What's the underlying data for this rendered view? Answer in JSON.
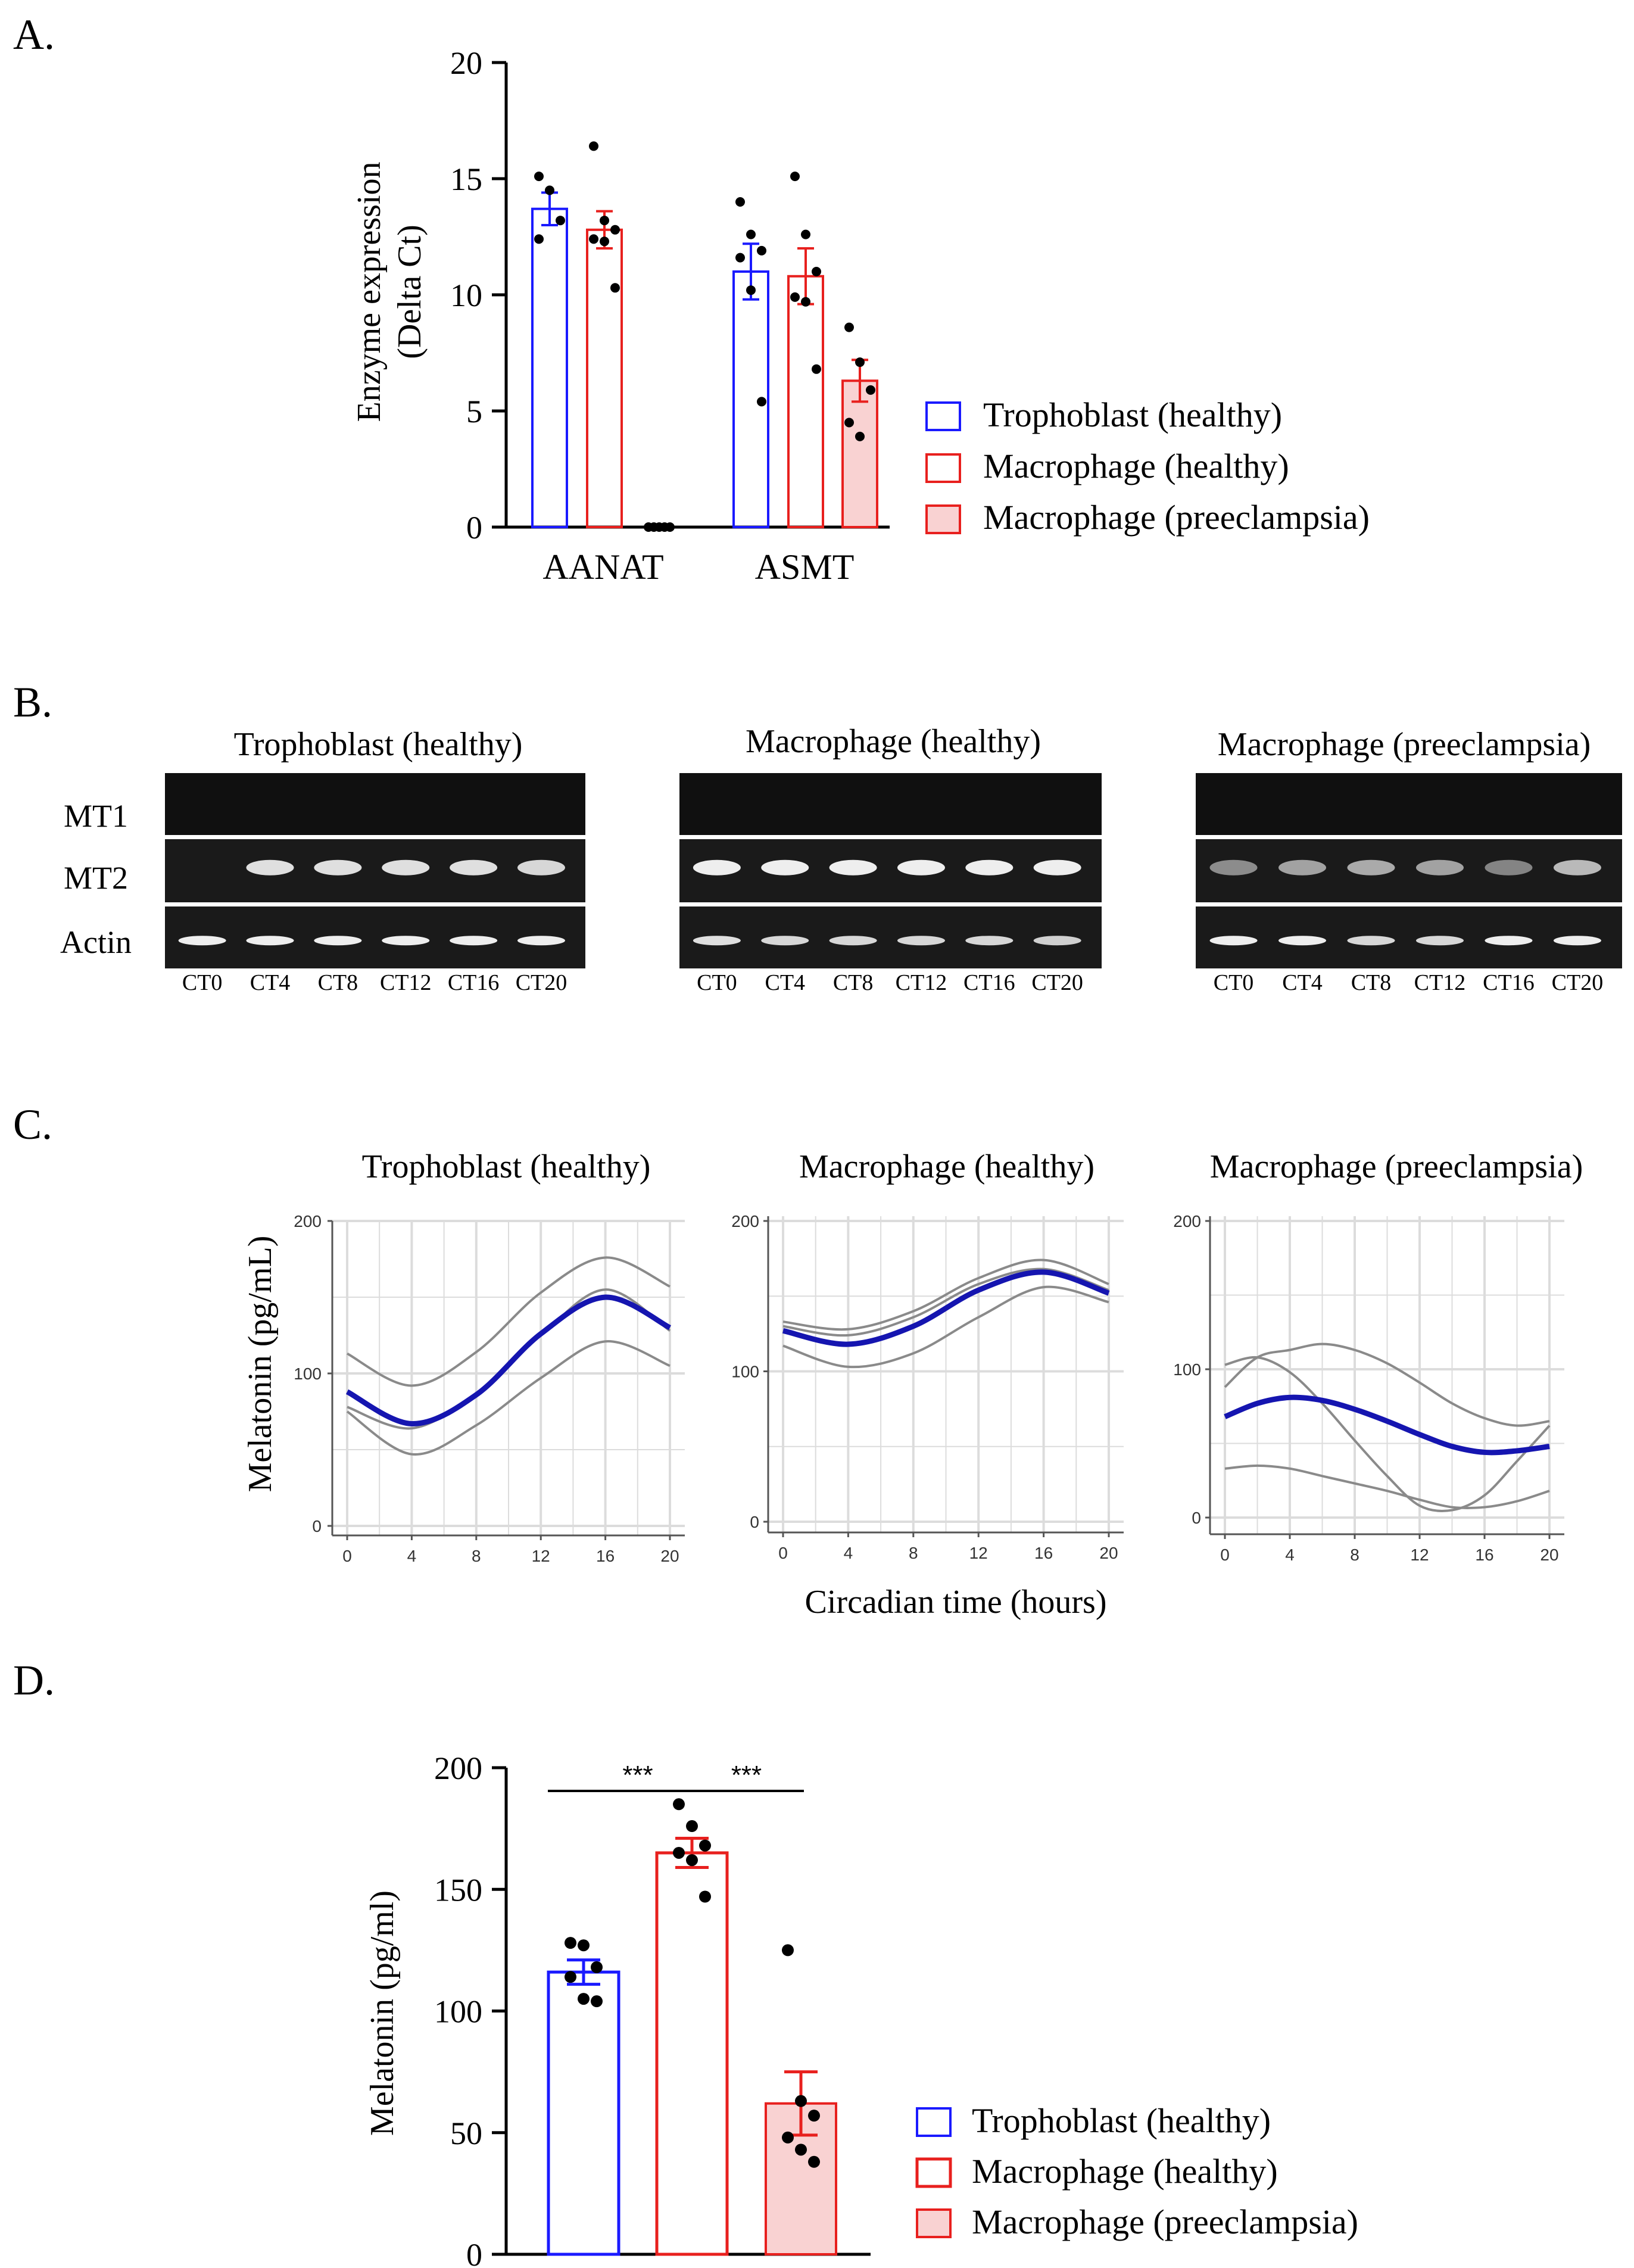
{
  "colors": {
    "trophoblast": "#1a1aff",
    "macrophage": "#e8201e",
    "preeclampsia_fill": "#f9d2d2",
    "fit_line": "#1515b0",
    "ci_line": "#8a8a8a",
    "grid": "#dcdcdc"
  },
  "panels": {
    "a": "A.",
    "b": "B.",
    "c": "C.",
    "d": "D."
  },
  "legend": {
    "trophoblast_healthy": "Trophoblast (healthy)",
    "macrophage_healthy": "Macrophage (healthy)",
    "macrophage_preeclampsia": "Macrophage (preeclampsia)"
  },
  "gel": {
    "titles": [
      "Trophoblast (healthy)",
      "Macrophage (healthy)",
      "Macrophage (preeclampsia)"
    ],
    "row_labels": [
      "MT1",
      "MT2",
      "Actin"
    ],
    "lanes": [
      "CT0",
      "CT4",
      "CT8",
      "CT12",
      "CT16",
      "CT20"
    ],
    "mt2_intensity": [
      [
        0.0,
        0.9,
        0.9,
        0.9,
        0.9,
        0.85
      ],
      [
        1.0,
        1.0,
        1.0,
        1.0,
        1.0,
        1.0
      ],
      [
        0.35,
        0.5,
        0.55,
        0.5,
        0.3,
        0.65
      ]
    ],
    "actin_intensity": [
      [
        1.0,
        1.0,
        1.0,
        1.0,
        1.0,
        1.0
      ],
      [
        0.9,
        0.85,
        0.85,
        0.85,
        0.85,
        0.8
      ],
      [
        1.0,
        1.0,
        0.85,
        0.85,
        1.0,
        1.0
      ]
    ]
  },
  "chart_data": [
    {
      "type": "bar",
      "panel": "A",
      "ylabel_lines": [
        "Enzyme expression",
        "(Delta Ct)"
      ],
      "ylim": [
        0,
        20
      ],
      "yticks": [
        "0",
        "5",
        "10",
        "15",
        "20"
      ],
      "categories": [
        "AANAT",
        "ASMT"
      ],
      "series": [
        {
          "name": "Trophoblast (healthy)",
          "values": [
            13.7,
            11.0
          ],
          "sem": [
            0.7,
            1.2
          ],
          "points": [
            [
              15.1,
              14.5,
              13.2,
              12.4
            ],
            [
              14.0,
              12.6,
              11.9,
              11.6,
              10.2,
              5.4
            ]
          ]
        },
        {
          "name": "Macrophage (healthy)",
          "values": [
            12.8,
            10.8
          ],
          "sem": [
            0.8,
            1.2
          ],
          "points": [
            [
              16.4,
              13.2,
              12.8,
              12.4,
              12.3,
              10.3
            ],
            [
              15.1,
              12.6,
              11.0,
              9.9,
              9.7,
              6.8
            ]
          ]
        },
        {
          "name": "Macrophage (preeclampsia)",
          "values": [
            0.0,
            6.3
          ],
          "sem": [
            0.0,
            0.9
          ],
          "points": [
            [
              0,
              0,
              0,
              0,
              0
            ],
            [
              8.6,
              7.1,
              5.9,
              4.5,
              3.9
            ]
          ]
        }
      ]
    },
    {
      "type": "line",
      "panel": "C",
      "ylabel": "Melatonin (pg/mL)",
      "xlabel": "Circadian time (hours)",
      "xlim": [
        0,
        20
      ],
      "xticks": [
        "0",
        "4",
        "8",
        "12",
        "16",
        "20"
      ],
      "ylim": [
        0,
        200
      ],
      "yticks": [
        "0",
        "100",
        "200"
      ],
      "subplots": [
        {
          "title": "Trophoblast (healthy)",
          "x": [
            0,
            4,
            8,
            12,
            16,
            20
          ],
          "fit": [
            88,
            67,
            86,
            126,
            150,
            130
          ],
          "ci_upper": [
            113,
            92,
            114,
            153,
            176,
            157
          ],
          "ci_lower": [
            75,
            47,
            66,
            97,
            121,
            105
          ],
          "ci_mid": [
            78,
            64,
            87,
            125,
            155,
            128
          ]
        },
        {
          "title": "Macrophage (healthy)",
          "x": [
            0,
            4,
            8,
            12,
            16,
            20
          ],
          "fit": [
            127,
            118,
            130,
            154,
            166,
            152
          ],
          "ci_upper": [
            133,
            128,
            140,
            162,
            174,
            158
          ],
          "ci_lower": [
            117,
            103,
            112,
            136,
            156,
            146
          ],
          "ci_mid": [
            130,
            124,
            136,
            158,
            168,
            154
          ]
        },
        {
          "title": "Macrophage (preeclampsia)",
          "x": [
            0,
            2,
            4,
            6,
            8,
            10,
            12,
            14,
            16,
            18,
            20
          ],
          "fit": [
            68,
            77,
            81,
            79,
            73,
            65,
            56,
            48,
            44,
            45,
            48
          ],
          "ci_upper": [
            88,
            108,
            113,
            117,
            113,
            104,
            91,
            77,
            67,
            62,
            65
          ],
          "ci_lower": [
            33,
            35,
            33,
            28,
            23,
            18,
            12,
            7,
            7,
            11,
            18
          ],
          "ci_mid": [
            103,
            108,
            98,
            77,
            52,
            28,
            8,
            5,
            15,
            38,
            62
          ]
        }
      ]
    },
    {
      "type": "bar",
      "panel": "D",
      "ylabel": "Melatonin (pg/ml)",
      "ylim": [
        0,
        200
      ],
      "yticks": [
        "0",
        "50",
        "100",
        "150",
        "200"
      ],
      "categories": [
        "Trophoblast (healthy)",
        "Macrophage (healthy)",
        "Macrophage (preeclampsia)"
      ],
      "values": [
        116,
        165,
        62
      ],
      "sem": [
        5,
        6,
        13
      ],
      "points": [
        [
          128,
          127,
          118,
          114,
          105,
          104
        ],
        [
          185,
          176,
          168,
          165,
          162,
          147
        ],
        [
          125,
          63,
          57,
          48,
          43,
          38
        ]
      ],
      "significance": [
        {
          "from": 0,
          "to": 1,
          "label": "***"
        },
        {
          "from": 1,
          "to": 2,
          "label": "***"
        }
      ]
    }
  ]
}
